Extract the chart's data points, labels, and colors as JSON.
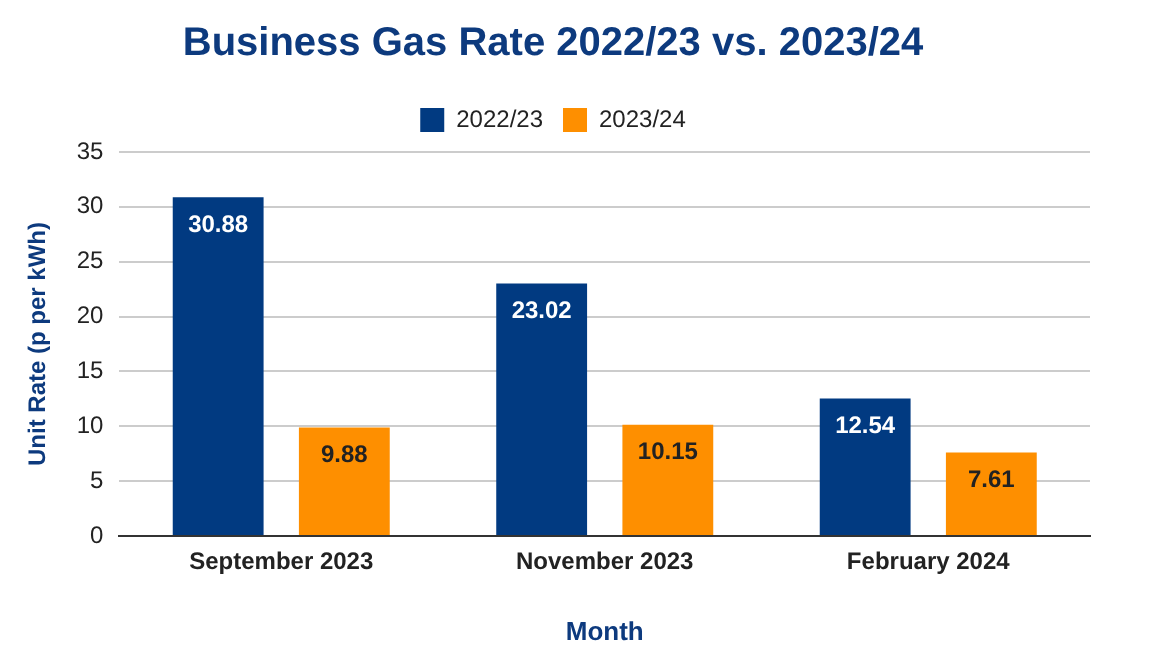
{
  "chart_data": {
    "type": "bar",
    "title": "Business Gas Rate 2022/23 vs. 2023/24",
    "xlabel": "Month",
    "ylabel": "Unit Rate (p per kWh)",
    "categories": [
      "September 2023",
      "November 2023",
      "February 2024"
    ],
    "series": [
      {
        "name": "2022/23",
        "color": "#013a81",
        "values": [
          30.88,
          23.02,
          12.54
        ]
      },
      {
        "name": "2023/24",
        "color": "#fe8f00",
        "values": [
          9.88,
          10.15,
          7.61
        ]
      }
    ],
    "ylim": [
      0,
      35
    ],
    "yticks": [
      0,
      5,
      10,
      15,
      20,
      25,
      30,
      35
    ],
    "grid": "y",
    "legend": "top",
    "data_labels": true
  }
}
